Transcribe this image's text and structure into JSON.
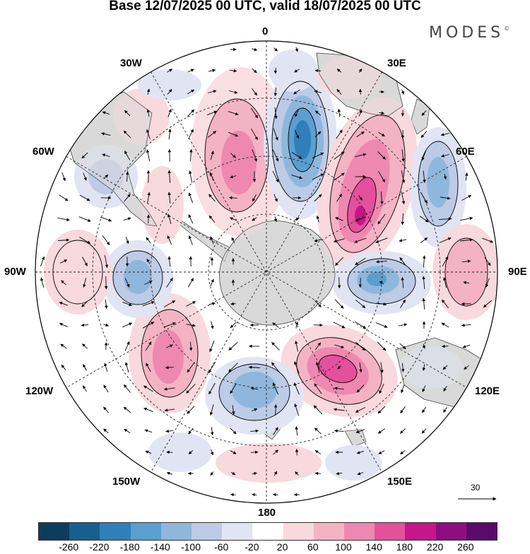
{
  "title": "Base 12/07/2025 00 UTC, valid 18/07/2025 00 UTC",
  "brand": "MODES",
  "brand_mark": "©",
  "longitude_labels": {
    "lon_0": "0",
    "lon_30e": "30E",
    "lon_60e": "60E",
    "lon_90e": "90E",
    "lon_120e": "120E",
    "lon_150e": "150E",
    "lon_180": "180",
    "lon_150w": "150W",
    "lon_120w": "120W",
    "lon_90w": "90W",
    "lon_60w": "60W",
    "lon_30w": "30W"
  },
  "reference_vector_label": "30",
  "colorbar": {
    "colors": [
      "#0b3d5e",
      "#165f8f",
      "#2f7fb9",
      "#5a9fcf",
      "#8fb7dc",
      "#bccbe6",
      "#e1e4f3",
      "#ffffff",
      "#f8d9dd",
      "#f4b3c4",
      "#ee88b0",
      "#e5509c",
      "#c5178a",
      "#8e0e7f",
      "#5a0a6b"
    ],
    "labels": [
      "-260",
      "-220",
      "-180",
      "-140",
      "-100",
      "-60",
      "-20",
      "20",
      "60",
      "100",
      "140",
      "180",
      "220",
      "260"
    ]
  },
  "colors": {
    "land": "#d9d9d9",
    "coast": "#555555",
    "grid": "#222222"
  }
}
